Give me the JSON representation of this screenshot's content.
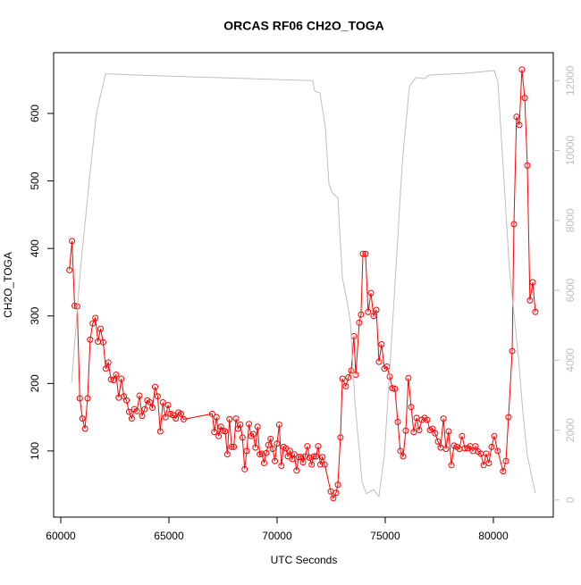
{
  "chart_data": {
    "type": "line",
    "title": "ORCAS RF06 CH2O_TOGA",
    "x_label": "UTC Seconds",
    "y_label": "CH2O_TOGA",
    "xlim": [
      59670,
      82770
    ],
    "ylim": [
      2,
      690
    ],
    "y2lim": [
      -490,
      12800
    ],
    "xticks": [
      60000,
      65000,
      70000,
      75000,
      80000
    ],
    "yticks": [
      100,
      200,
      300,
      400,
      500,
      600
    ],
    "y2ticks": [
      0,
      2000,
      4000,
      6000,
      8000,
      10000,
      12000
    ],
    "y2_color": "#bebebe",
    "series": [
      {
        "color": "#ff0000",
        "markers": true,
        "x": [
          60400,
          60520,
          60640,
          60760,
          60880,
          61000,
          61120,
          61240,
          61360,
          61480,
          61600,
          61720,
          61840,
          61960,
          62080,
          62200,
          62320,
          62440,
          62560,
          62680,
          62800,
          62920,
          63040,
          63160,
          63280,
          63400,
          63520,
          63640,
          63760,
          63880,
          64000,
          64120,
          64240,
          64360,
          64480,
          64600,
          64720,
          64840,
          64960,
          65080,
          65200,
          65320,
          65440,
          65560,
          65680,
          67000,
          67100,
          67200,
          67300,
          67400,
          67500,
          67600,
          67700,
          67800,
          67900,
          68000,
          68100,
          68200,
          68300,
          68400,
          68500,
          68600,
          68700,
          68800,
          68900,
          69000,
          69100,
          69200,
          69300,
          69400,
          69500,
          69600,
          69700,
          69800,
          69900,
          70000,
          70100,
          70200,
          70300,
          70400,
          70500,
          70600,
          70700,
          70800,
          70900,
          71000,
          71100,
          71200,
          71300,
          71400,
          71500,
          71600,
          71700,
          71800,
          71900,
          72000,
          72100,
          72200,
          72480,
          72600,
          72730,
          72810,
          72930,
          73020,
          73180,
          73300,
          73430,
          73550,
          73640,
          73800,
          73880,
          73970,
          74090,
          74210,
          74340,
          74460,
          74590,
          74710,
          74830,
          74960,
          75080,
          75210,
          75330,
          75450,
          75580,
          75700,
          75830,
          75950,
          76070,
          76200,
          76320,
          76450,
          76570,
          76690,
          76820,
          76940,
          77070,
          77190,
          77310,
          77440,
          77560,
          77690,
          77810,
          77930,
          78060,
          78180,
          78310,
          78430,
          78550,
          78680,
          78800,
          78930,
          79050,
          79170,
          79300,
          79420,
          79550,
          79670,
          79790,
          79920,
          80040,
          80200,
          80450,
          80580,
          80700,
          80870,
          80950,
          81070,
          81200,
          81320,
          81450,
          81570,
          81690,
          81820,
          81940
        ],
        "values": [
          368,
          411,
          315,
          314,
          178,
          148,
          133,
          178,
          265,
          289,
          297,
          262,
          281,
          261,
          222,
          231,
          206,
          205,
          213,
          179,
          207,
          181,
          175,
          158,
          148,
          162,
          159,
          182,
          152,
          162,
          175,
          172,
          164,
          195,
          181,
          129,
          172,
          150,
          168,
          155,
          153,
          148,
          157,
          155,
          147,
          155,
          128,
          150,
          122,
          136,
          130,
          129,
          95,
          147,
          106,
          106,
          148,
          133,
          139,
          120,
          73,
          100,
          140,
          122,
          125,
          105,
          136,
          95,
          96,
          82,
          97,
          109,
          118,
          103,
          85,
          111,
          139,
          78,
          106,
          104,
          92,
          100,
          88,
          95,
          71,
          91,
          91,
          83,
          92,
          107,
          90,
          80,
          92,
          92,
          107,
          80,
          91,
          80,
          40,
          30,
          38,
          50,
          120,
          207,
          196,
          209,
          219,
          270,
          213,
          290,
          302,
          392,
          392,
          306,
          334,
          300,
          309,
          232,
          258,
          222,
          225,
          210,
          193,
          192,
          143,
          100,
          92,
          130,
          208,
          165,
          128,
          149,
          131,
          146,
          149,
          146,
          131,
          133,
          126,
          114,
          105,
          148,
          103,
          129,
          79,
          108,
          106,
          103,
          122,
          104,
          104,
          107,
          100,
          107,
          99,
          96,
          79,
          96,
          82,
          106,
          122,
          100,
          70,
          85,
          150,
          248,
          436,
          595,
          583,
          665,
          623,
          523,
          323,
          350,
          306
        ]
      },
      {
        "color": "#bebebe",
        "axis": "y2",
        "markers": false,
        "x": [
          60500,
          60910,
          61320,
          61650,
          62070,
          63390,
          67520,
          71650,
          71740,
          71980,
          72230,
          72400,
          72560,
          72810,
          73020,
          73220,
          73390,
          73600,
          73930,
          74130,
          74460,
          74710,
          74960,
          75370,
          75790,
          76120,
          76410,
          76820,
          77030,
          78680,
          80040,
          80210,
          80740,
          81160,
          81360,
          81570,
          81940
        ],
        "values": [
          3360,
          6600,
          9150,
          11070,
          12200,
          12160,
          12080,
          12000,
          11700,
          11650,
          10680,
          9030,
          8780,
          8650,
          6360,
          5730,
          5090,
          2800,
          510,
          180,
          300,
          100,
          1270,
          5340,
          9670,
          11830,
          12090,
          12060,
          12160,
          12210,
          12290,
          11960,
          6620,
          4070,
          2540,
          1270,
          200
        ]
      }
    ]
  }
}
